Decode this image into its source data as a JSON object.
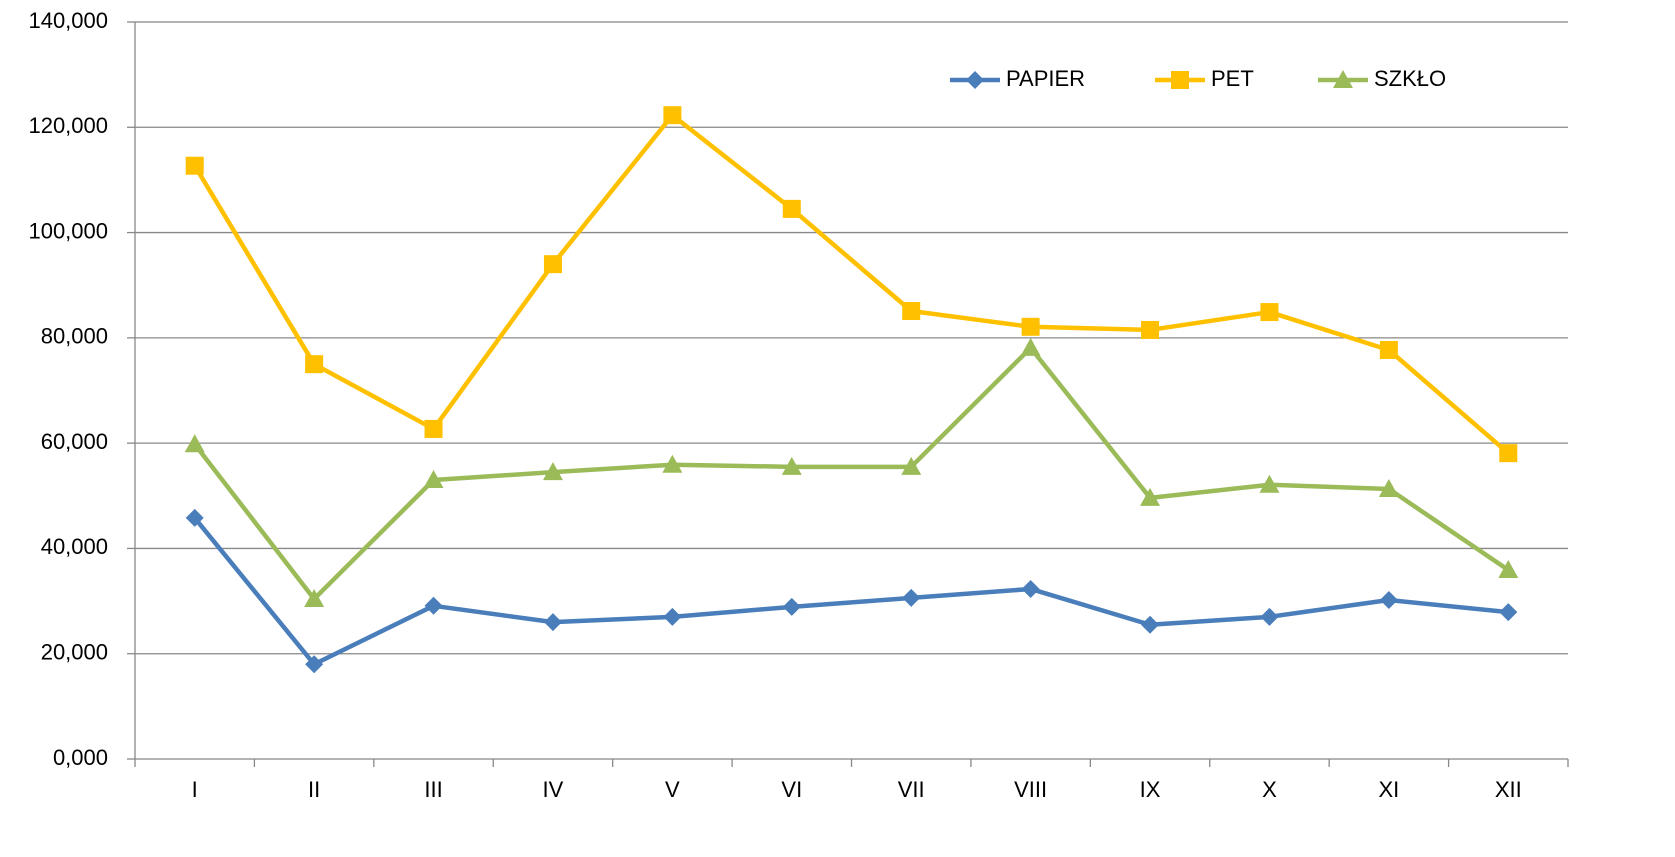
{
  "chart_data": {
    "type": "line",
    "categories": [
      "I",
      "II",
      "III",
      "IV",
      "V",
      "VI",
      "VII",
      "VIII",
      "IX",
      "X",
      "XI",
      "XII"
    ],
    "series": [
      {
        "name": "PAPIER",
        "color": "#4a7ebb",
        "marker": "diamond",
        "values": [
          45.8,
          18.0,
          29.1,
          26.0,
          27.0,
          28.9,
          30.6,
          32.3,
          25.5,
          27.0,
          30.2,
          27.9
        ]
      },
      {
        "name": "PET",
        "color": "#ffc000",
        "marker": "square",
        "values": [
          112.7,
          75.0,
          62.7,
          94.0,
          122.3,
          104.5,
          85.1,
          82.1,
          81.5,
          84.9,
          77.7,
          58.1
        ]
      },
      {
        "name": "SZKŁO",
        "color": "#9bbb59",
        "marker": "triangle",
        "values": [
          59.8,
          30.4,
          53.0,
          54.5,
          55.9,
          55.5,
          55.5,
          78.1,
          49.6,
          52.1,
          51.3,
          35.9
        ]
      }
    ],
    "ylim": [
      0,
      140
    ],
    "yticks": [
      {
        "value": 0,
        "label": "0,000"
      },
      {
        "value": 20,
        "label": "20,000"
      },
      {
        "value": 40,
        "label": "40,000"
      },
      {
        "value": 60,
        "label": "60,000"
      },
      {
        "value": 80,
        "label": "80,000"
      },
      {
        "value": 100,
        "label": "100,000"
      },
      {
        "value": 120,
        "label": "120,000"
      },
      {
        "value": 140,
        "label": "140,000"
      }
    ],
    "grid": true,
    "legend": "top-right"
  }
}
